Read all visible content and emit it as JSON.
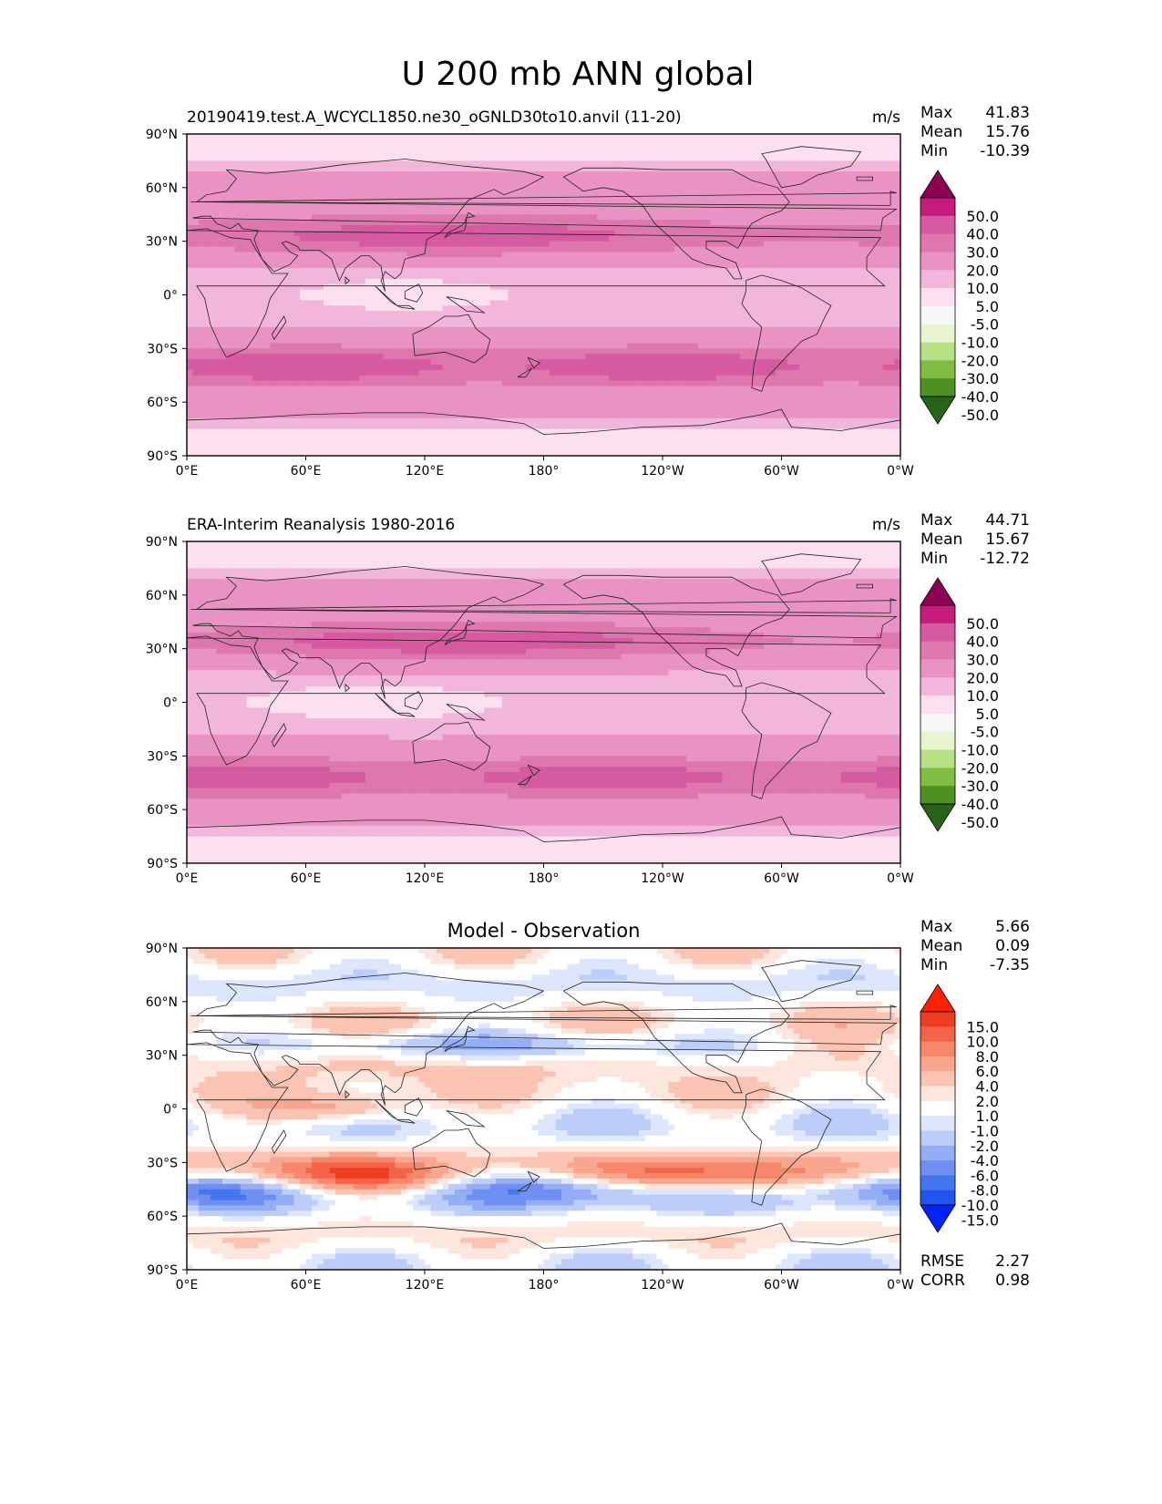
{
  "figure_title": "U 200 mb ANN global",
  "colors": {
    "sequential": [
      "#276419",
      "#4d9221",
      "#7fbc41",
      "#b8e186",
      "#e6f5d0",
      "#f7f7f7",
      "#fde0ef",
      "#f1b6da",
      "#e993c4",
      "#de77ae",
      "#d65aa0",
      "#c51b7d",
      "#8e0152"
    ],
    "diverging": [
      "#0022ff",
      "#2255ee",
      "#4477ee",
      "#6f90f2",
      "#93aef6",
      "#bccdf9",
      "#dde6fc",
      "#ffffff",
      "#fde6dd",
      "#fbc4b2",
      "#f9a68f",
      "#f7876b",
      "#f46248",
      "#ef3d22",
      "#ff2200"
    ]
  },
  "chart_data": [
    {
      "type": "heatmap",
      "panel": "test",
      "title": "20190419.test.A_WCYCL1850.ne30_oGNLD30to10.anvil (11-20)",
      "units": "m/s",
      "stats": [
        {
          "label": "Max",
          "value": "41.83"
        },
        {
          "label": "Mean",
          "value": "15.76"
        },
        {
          "label": "Min",
          "value": "-10.39"
        }
      ],
      "colorbar_labels": [
        "50.0",
        "40.0",
        "30.0",
        "20.0",
        "10.0",
        "5.0",
        "-5.0",
        "-10.0",
        "-20.0",
        "-30.0",
        "-40.0",
        "-50.0"
      ],
      "x_ticks": [
        "0°E",
        "60°E",
        "120°E",
        "180°",
        "120°W",
        "60°W",
        "0°W"
      ],
      "y_ticks": [
        "90°N",
        "60°N",
        "30°N",
        "0°",
        "30°S",
        "60°S",
        "90°S"
      ],
      "xlim": [
        0,
        360
      ],
      "ylim": [
        -90,
        90
      ],
      "contour_levels": [
        -50,
        -40,
        -30,
        -20,
        -10,
        -5,
        5,
        10,
        20,
        30,
        40,
        50
      ]
    },
    {
      "type": "heatmap",
      "panel": "reference",
      "title": "ERA-Interim Reanalysis 1980-2016",
      "units": "m/s",
      "stats": [
        {
          "label": "Max",
          "value": "44.71"
        },
        {
          "label": "Mean",
          "value": "15.67"
        },
        {
          "label": "Min",
          "value": "-12.72"
        }
      ],
      "colorbar_labels": [
        "50.0",
        "40.0",
        "30.0",
        "20.0",
        "10.0",
        "5.0",
        "-5.0",
        "-10.0",
        "-20.0",
        "-30.0",
        "-40.0",
        "-50.0"
      ],
      "x_ticks": [
        "0°E",
        "60°E",
        "120°E",
        "180°",
        "120°W",
        "60°W",
        "0°W"
      ],
      "y_ticks": [
        "90°N",
        "60°N",
        "30°N",
        "0°",
        "30°S",
        "60°S",
        "90°S"
      ],
      "xlim": [
        0,
        360
      ],
      "ylim": [
        -90,
        90
      ],
      "contour_levels": [
        -50,
        -40,
        -30,
        -20,
        -10,
        -5,
        5,
        10,
        20,
        30,
        40,
        50
      ]
    },
    {
      "type": "heatmap",
      "panel": "difference",
      "title": "Model - Observation",
      "units": "",
      "stats": [
        {
          "label": "Max",
          "value": "5.66"
        },
        {
          "label": "Mean",
          "value": "0.09"
        },
        {
          "label": "Min",
          "value": "-7.35"
        }
      ],
      "extra_stats": [
        {
          "label": "RMSE",
          "value": "2.27"
        },
        {
          "label": "CORR",
          "value": "0.98"
        }
      ],
      "colorbar_labels": [
        "15.0",
        "10.0",
        "8.0",
        "6.0",
        "4.0",
        "2.0",
        "1.0",
        "-1.0",
        "-2.0",
        "-4.0",
        "-6.0",
        "-8.0",
        "-10.0",
        "-15.0"
      ],
      "x_ticks": [
        "0°E",
        "60°E",
        "120°E",
        "180°",
        "120°W",
        "60°W",
        "0°W"
      ],
      "y_ticks": [
        "90°N",
        "60°N",
        "30°N",
        "0°",
        "30°S",
        "60°S",
        "90°S"
      ],
      "xlim": [
        0,
        360
      ],
      "ylim": [
        -90,
        90
      ],
      "contour_levels": [
        -15,
        -10,
        -8,
        -6,
        -4,
        -2,
        -1,
        1,
        2,
        4,
        6,
        8,
        10,
        15
      ]
    }
  ]
}
